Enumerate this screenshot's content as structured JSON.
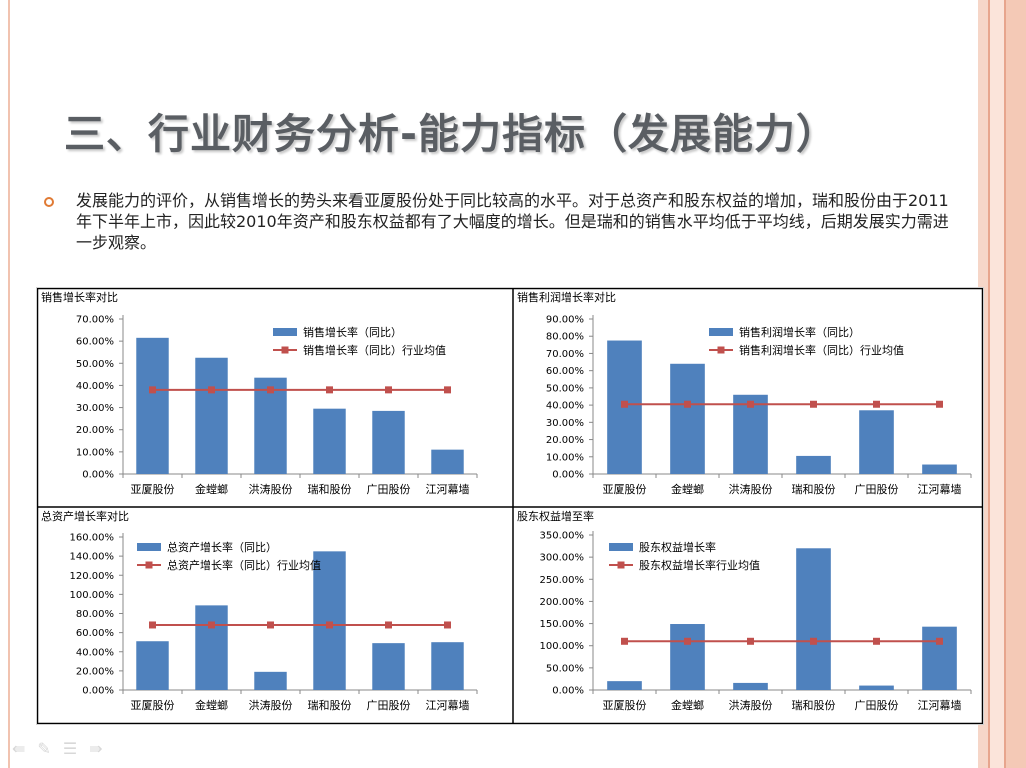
{
  "slide": {
    "title": "三、行业财务分析-能力指标（发展能力）",
    "bullet": "发展能力的评价，从销售增长的势头来看亚厦股份处于同比较高的水平。对于总资产和股东权益的增加，瑞和股份由于2011年下半年上市，因此较2010年资产和股东权益都有了大幅度的增长。但是瑞和的销售水平均低于平均线，后期发展实力需进一步观察。"
  },
  "colors": {
    "bar": "#4f81bd",
    "avg": "#c0504d",
    "title": "#5a5e63",
    "bullet": "#e07a34"
  },
  "nav_icons": [
    "back-arrow-icon",
    "pen-icon",
    "menu-icon",
    "forward-arrow-icon"
  ],
  "chart_data": [
    {
      "type": "bar",
      "title": "销售增长率对比",
      "categories": [
        "亚厦股份",
        "金螳螂",
        "洪涛股份",
        "瑞和股份",
        "广田股份",
        "江河幕墙"
      ],
      "ylim": [
        0,
        70
      ],
      "yticks": [
        0,
        10,
        20,
        30,
        40,
        50,
        60,
        70
      ],
      "series": [
        {
          "name": "销售增长率（同比）",
          "kind": "bar",
          "values": [
            61.5,
            52.5,
            43.5,
            29.5,
            28.5,
            11.0
          ]
        },
        {
          "name": "销售增长率（同比）行业均值",
          "kind": "line",
          "values": [
            38.0,
            38.0,
            38.0,
            38.0,
            38.0,
            38.0
          ]
        }
      ]
    },
    {
      "type": "bar",
      "title": "销售利润增长率对比",
      "categories": [
        "亚厦股份",
        "金螳螂",
        "洪涛股份",
        "瑞和股份",
        "广田股份",
        "江河幕墙"
      ],
      "ylim": [
        0,
        90
      ],
      "yticks": [
        0,
        10,
        20,
        30,
        40,
        50,
        60,
        70,
        80,
        90
      ],
      "series": [
        {
          "name": "销售利润增长率（同比）",
          "kind": "bar",
          "values": [
            77.5,
            64.0,
            46.0,
            10.5,
            37.0,
            5.5
          ]
        },
        {
          "name": "销售利润增长率（同比）行业均值",
          "kind": "line",
          "values": [
            40.5,
            40.5,
            40.5,
            40.5,
            40.5,
            40.5
          ]
        }
      ]
    },
    {
      "type": "bar",
      "title": "总资产增长率对比",
      "categories": [
        "亚厦股份",
        "金螳螂",
        "洪涛股份",
        "瑞和股份",
        "广田股份",
        "江河幕墙"
      ],
      "ylim": [
        0,
        160
      ],
      "yticks": [
        0,
        20,
        40,
        60,
        80,
        100,
        120,
        140,
        160
      ],
      "series": [
        {
          "name": "总资产增长率（同比）",
          "kind": "bar",
          "values": [
            51.0,
            88.5,
            19.0,
            145.0,
            49.0,
            50.0
          ]
        },
        {
          "name": "总资产增长率（同比）行业均值",
          "kind": "line",
          "values": [
            68.0,
            68.0,
            68.0,
            68.0,
            68.0,
            68.0
          ]
        }
      ]
    },
    {
      "type": "bar",
      "title": "股东权益增至率",
      "categories": [
        "亚厦股份",
        "金螳螂",
        "洪涛股份",
        "瑞和股份",
        "广田股份",
        "江河幕墙"
      ],
      "ylim": [
        0,
        350
      ],
      "yticks": [
        0,
        50,
        100,
        150,
        200,
        250,
        300,
        350
      ],
      "series": [
        {
          "name": "股东权益增长率",
          "kind": "bar",
          "values": [
            20.0,
            149.0,
            16.0,
            320.0,
            10.0,
            143.0
          ]
        },
        {
          "name": "股东权益增长率行业均值",
          "kind": "line",
          "values": [
            110.0,
            110.0,
            110.0,
            110.0,
            110.0,
            110.0
          ]
        }
      ]
    }
  ]
}
